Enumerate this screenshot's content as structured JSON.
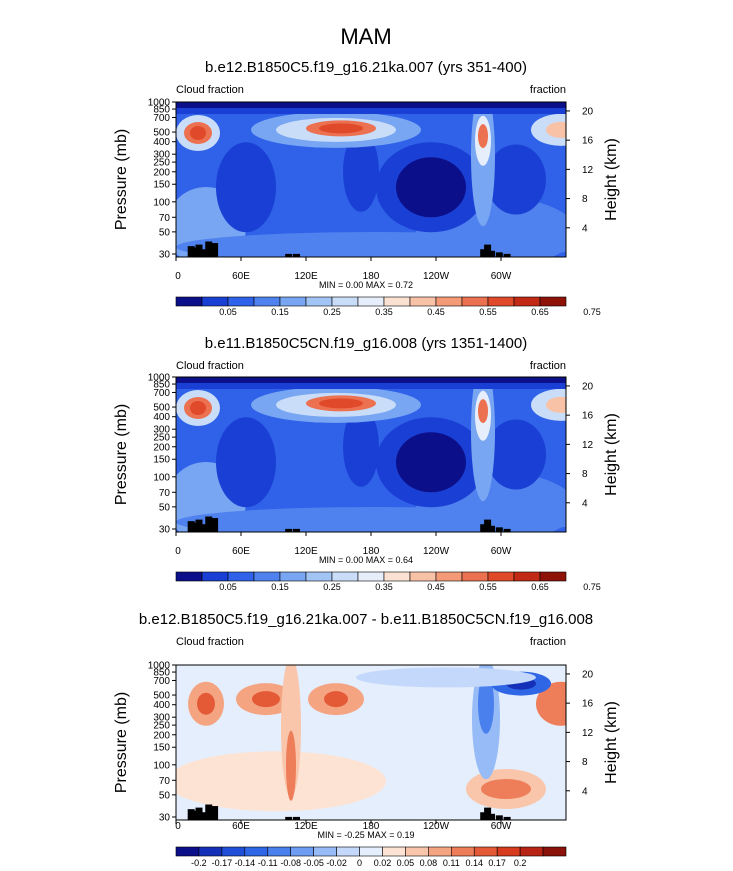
{
  "figure": {
    "title": "MAM"
  },
  "chart_data": [
    {
      "type": "heatmap",
      "title": "b.e12.B1850C5.f19_g16.21ka.007 (yrs 351-400)",
      "left_label": "Cloud fraction",
      "right_label": "fraction",
      "ylabel": "Pressure (mb)",
      "ylabel_right": "Height (km)",
      "x_ticks": [
        "0",
        "60E",
        "120E",
        "180",
        "120W",
        "60W"
      ],
      "pressure_ticks": [
        "1000",
        "850",
        "700",
        "500",
        "400",
        "300",
        "250",
        "200",
        "150",
        "100",
        "70",
        "50",
        "30"
      ],
      "height_ticks": [
        "4",
        "8",
        "12",
        "16",
        "20"
      ],
      "stats": "MIN =   0.00  MAX =   0.72",
      "colorbar_labels": [
        "0.05",
        "0.15",
        "0.25",
        "0.35",
        "0.45",
        "0.55",
        "0.65",
        "0.75"
      ],
      "colorbar_colors": [
        "#0b0f8a",
        "#1a3fd4",
        "#2f62e8",
        "#4f82ee",
        "#78a6f2",
        "#a3c5f5",
        "#c9ddf9",
        "#e6eefb",
        "#fbe1d2",
        "#f8c2a6",
        "#f49a77",
        "#ec7150",
        "#e04a2a",
        "#c32a16",
        "#8f1208"
      ],
      "value_range": [
        0,
        0.72
      ]
    },
    {
      "type": "heatmap",
      "title": "b.e11.B1850C5CN.f19_g16.008 (yrs 1351-1400)",
      "left_label": "Cloud fraction",
      "right_label": "fraction",
      "ylabel": "Pressure (mb)",
      "ylabel_right": "Height (km)",
      "x_ticks": [
        "0",
        "60E",
        "120E",
        "180",
        "120W",
        "60W"
      ],
      "pressure_ticks": [
        "1000",
        "850",
        "700",
        "500",
        "400",
        "300",
        "250",
        "200",
        "150",
        "100",
        "70",
        "50",
        "30"
      ],
      "height_ticks": [
        "4",
        "8",
        "12",
        "16",
        "20"
      ],
      "stats": "MIN =   0.00  MAX =   0.64",
      "colorbar_labels": [
        "0.05",
        "0.15",
        "0.25",
        "0.35",
        "0.45",
        "0.55",
        "0.65",
        "0.75"
      ],
      "colorbar_colors": [
        "#0b0f8a",
        "#1a3fd4",
        "#2f62e8",
        "#4f82ee",
        "#78a6f2",
        "#a3c5f5",
        "#c9ddf9",
        "#e6eefb",
        "#fbe1d2",
        "#f8c2a6",
        "#f49a77",
        "#ec7150",
        "#e04a2a",
        "#c32a16",
        "#8f1208"
      ],
      "value_range": [
        0,
        0.64
      ]
    },
    {
      "type": "heatmap",
      "title": "b.e12.B1850C5.f19_g16.21ka.007 - b.e11.B1850C5CN.f19_g16.008",
      "left_label": "Cloud fraction",
      "right_label": "fraction",
      "ylabel": "Pressure (mb)",
      "ylabel_right": "Height (km)",
      "x_ticks": [
        "0",
        "60E",
        "120E",
        "180",
        "120W",
        "60W"
      ],
      "pressure_ticks": [
        "1000",
        "850",
        "700",
        "500",
        "400",
        "300",
        "250",
        "200",
        "150",
        "100",
        "70",
        "50",
        "30"
      ],
      "height_ticks": [
        "4",
        "8",
        "12",
        "16",
        "20"
      ],
      "stats": "MIN =  -0.25  MAX =   0.19",
      "colorbar_labels": [
        "-0.2",
        "-0.17",
        "-0.14",
        "-0.11",
        "-0.08",
        "-0.05",
        "-0.02",
        "0",
        "0.02",
        "0.05",
        "0.08",
        "0.11",
        "0.14",
        "0.17",
        "0.2"
      ],
      "colorbar_colors": [
        "#0b0f8a",
        "#1530b8",
        "#1f4fd6",
        "#2f66e6",
        "#4a80ee",
        "#6d9cf2",
        "#96bbf6",
        "#c3d8fa",
        "#e4eefc",
        "#fde3d4",
        "#f9c6ab",
        "#f5a482",
        "#ee7d5a",
        "#e45a37",
        "#d63b1d",
        "#b82413",
        "#8a1208"
      ],
      "value_range": [
        -0.25,
        0.19
      ]
    }
  ]
}
